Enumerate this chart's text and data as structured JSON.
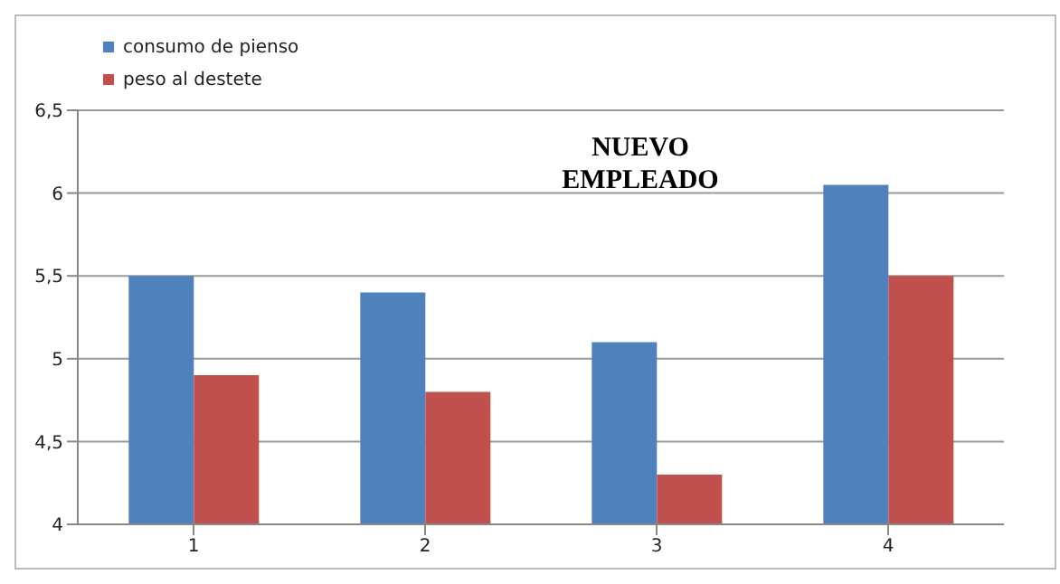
{
  "chart_data": {
    "type": "bar",
    "categories": [
      "1",
      "2",
      "3",
      "4"
    ],
    "series": [
      {
        "name": "consumo de pienso",
        "color": "#4f81bd",
        "values": [
          5.5,
          5.4,
          5.1,
          6.05
        ]
      },
      {
        "name": "peso al destete",
        "color": "#c0504d",
        "values": [
          4.9,
          4.8,
          4.3,
          5.5
        ]
      }
    ],
    "ylim": [
      4,
      6.5
    ],
    "yticks": [
      4,
      {
        "value": 4.5,
        "label": "4,5"
      },
      5,
      {
        "value": 5.5,
        "label": "5,5"
      },
      6,
      {
        "value": 6.5,
        "label": "6,5"
      }
    ],
    "grid": "y",
    "legend": "top left",
    "annotations": [
      "NUEVO EMPLEADO"
    ]
  }
}
